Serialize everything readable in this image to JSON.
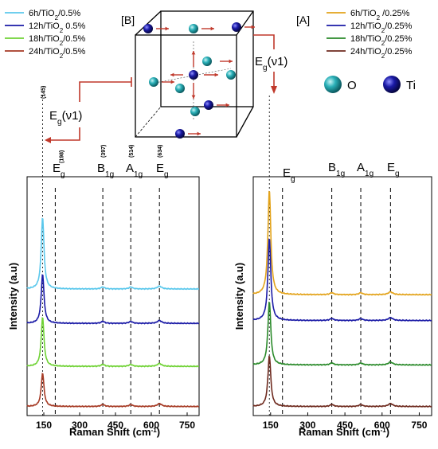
{
  "chart_data": [
    {
      "panel": "[B]",
      "type": "line",
      "xlabel": "Raman Shift (cm⁻¹)",
      "ylabel": "Intensity (a.u)",
      "xlim": [
        80,
        800
      ],
      "xticks": [
        150,
        300,
        450,
        600,
        750
      ],
      "xtick_labels": [
        "150",
        "300",
        "450",
        "600",
        "750"
      ],
      "legend_position": "top-left",
      "peak_positions": [
        145,
        198,
        397,
        514,
        634
      ],
      "peak_position_labels": [
        "(145)",
        "(198)",
        "(397)",
        "(514)",
        "(634)"
      ],
      "peak_modes": [
        "Eg",
        "B1g",
        "A1g",
        "Eg"
      ],
      "series": [
        {
          "name": "6h/TiO2/0.5%",
          "color": "#5bc8ec",
          "offset": 4.25,
          "peak_height": 2.25
        },
        {
          "name": "12h/TiO2 0.5%",
          "color": "#1a1aa6",
          "offset": 3.05,
          "peak_height": 1.55
        },
        {
          "name": "18h/TiO2/0.5%",
          "color": "#6fd234",
          "offset": 1.55,
          "peak_height": 1.55
        },
        {
          "name": "24h/TiO2/0.5%",
          "color": "#a63a24",
          "offset": 0.15,
          "peak_height": 1.05
        }
      ]
    },
    {
      "panel": "[A]",
      "type": "line",
      "xlabel": "Raman Shift (cm⁻¹)",
      "ylabel": "Intensity (a.u)",
      "xlim": [
        80,
        800
      ],
      "xticks": [
        150,
        300,
        450,
        600,
        750
      ],
      "xtick_labels": [
        "150",
        "300",
        "450",
        "600",
        "750"
      ],
      "legend_position": "top-right",
      "peak_positions": [
        145,
        198,
        397,
        514,
        634
      ],
      "peak_modes": [
        "Eg",
        "B1g",
        "A1g",
        "Eg"
      ],
      "series": [
        {
          "name": "6h/TiO2 /0.25%",
          "color": "#e3a31a",
          "offset": 4.05,
          "peak_height": 3.3
        },
        {
          "name": "12h/TiO2/0.25%",
          "color": "#1a1aa6",
          "offset": 3.15,
          "peak_height": 2.6
        },
        {
          "name": "18h/TiO2/0.25%",
          "color": "#2a8a2a",
          "offset": 1.6,
          "peak_height": 2.0
        },
        {
          "name": "24h/TiO2/0.25%",
          "color": "#6e2a1e",
          "offset": 0.15,
          "peak_height": 1.6
        }
      ]
    }
  ],
  "legend_left": [
    {
      "pre": "6h/TiO",
      "sub": "2",
      "post": "/0.5%"
    },
    {
      "pre": "12h/TiO",
      "sub": "2",
      "post": " 0.5%"
    },
    {
      "pre": "18h/TiO",
      "sub": "2",
      "post": "/0.5%"
    },
    {
      "pre": "24h/TiO",
      "sub": "2",
      "post": "/0.5%"
    }
  ],
  "legend_right": [
    {
      "pre": "6h/TiO",
      "sub": "2",
      "post": " /0.25%"
    },
    {
      "pre": "12h/TiO",
      "sub": "2",
      "post": "/0.25%"
    },
    {
      "pre": "18h/TiO",
      "sub": "2",
      "post": "/0.25%"
    },
    {
      "pre": "24h/TiO",
      "sub": "2",
      "post": "/0.25%"
    }
  ],
  "labels": {
    "panel_b": "[B]",
    "panel_a": "[A]",
    "eg_v1": "E",
    "eg_v1_sub": "g",
    "eg_v1_tail": "(ν1)",
    "e": "E",
    "e_sub": "g",
    "b": "B",
    "b_sub": "1g",
    "a": "A",
    "a_sub": "1g",
    "atom_o": "O",
    "atom_ti": "Ti",
    "xlabel_main": "Raman Shift (cm",
    "xlabel_sup": "-1",
    "xlabel_end": ")",
    "ylabel": "Intensity (a.u)"
  },
  "colors": {
    "oxygen": "#2ab0b8",
    "titanium": "#1a1aa6",
    "arrow": "#c0392b"
  }
}
